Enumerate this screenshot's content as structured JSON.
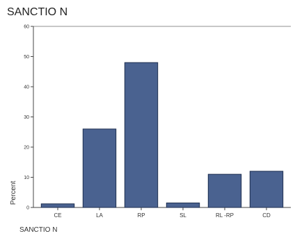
{
  "chart_data": {
    "type": "bar",
    "title": "SANCTIO N",
    "xlabel": "SANCTIO N",
    "ylabel": "Percent",
    "categories": [
      "CE",
      "LA",
      "RP",
      "SL",
      "RL -RP",
      "CD"
    ],
    "values": [
      1.2,
      26,
      48,
      1.5,
      11,
      12
    ],
    "ylim": [
      0,
      60
    ],
    "yticks": [
      0,
      10,
      20,
      30,
      40,
      50,
      60
    ],
    "grid": false,
    "bar_color": "#4a6290"
  }
}
